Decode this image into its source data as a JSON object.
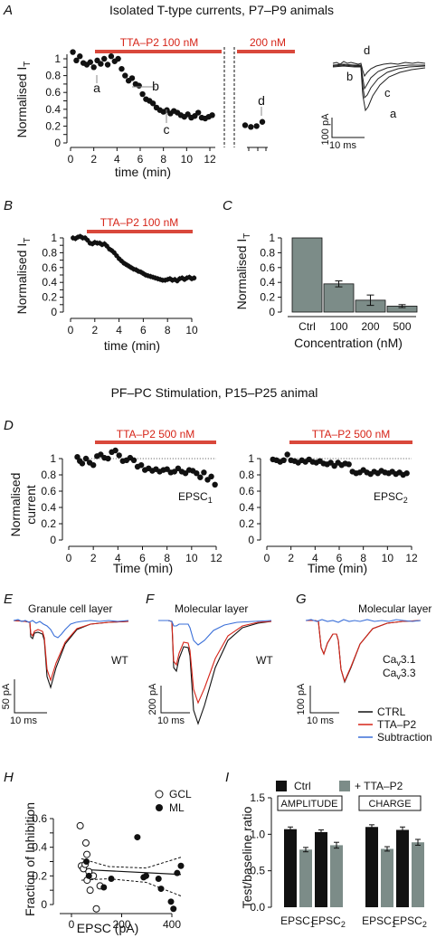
{
  "figure": {
    "section_title_top": "Isolated T-type currents, P7–P9 animals",
    "section_title_mid": "PF–PC Stimulation, P15–P25 animal"
  },
  "panels": {
    "A": {
      "letter": "A",
      "bar1_label": "TTA–P2 100 nM",
      "bar2_label": "200 nM",
      "trace_labels": [
        "a",
        "b",
        "c",
        "d"
      ],
      "scale": {
        "current": "100 pA",
        "time": "10 ms"
      }
    },
    "B": {
      "letter": "B",
      "bar_label": "TTA–P2 100 nM"
    },
    "C": {
      "letter": "C"
    },
    "D": {
      "letter": "D",
      "bar1_label": "TTA–P2 500 nM",
      "bar2_label": "TTA–P2 500 nM",
      "label1": "EPSC",
      "label1_sub": "1",
      "label2": "EPSC",
      "label2_sub": "2"
    },
    "E": {
      "letter": "E",
      "title": "Granule cell layer",
      "tag": "WT",
      "scale": {
        "current": "50 pA",
        "time": "10 ms"
      }
    },
    "F": {
      "letter": "F",
      "title": "Molecular layer",
      "tag": "WT",
      "scale": {
        "current": "200 pA",
        "time": "10 ms"
      }
    },
    "G": {
      "letter": "G",
      "title": "Molecular layer",
      "tag_line1": "Ca",
      "tag_line1_sub": "v",
      "tag_line1_rest": "3.1",
      "tag_line2": "Ca",
      "tag_line2_sub": "v",
      "tag_line2_rest": "3.3",
      "scale": {
        "current": "100 pA",
        "time": "10 ms"
      },
      "legend": [
        "CTRL",
        "TTA–P2",
        "Subtraction"
      ]
    },
    "H": {
      "letter": "H"
    },
    "I": {
      "letter": "I",
      "box1": "AMPLITUDE",
      "box2": "CHARGE",
      "legend": [
        "Ctrl",
        "+ TTA–P2"
      ]
    }
  },
  "colors": {
    "ctrl_trace": "#111111",
    "tta_trace": "#d62418",
    "subtraction_trace": "#3a6fd8",
    "drug_bar": "#d9483b",
    "gray_bar": "#7c8c88",
    "black_bar": "#111111"
  },
  "chart_data": [
    {
      "id": "A-time",
      "type": "scatter",
      "xlabel": "time (min)",
      "ylabel": "Normalised I",
      "ylabel_sub": "T",
      "xlim": [
        0,
        14.2
      ],
      "ylim": [
        0,
        1.1
      ],
      "x_ticks": [
        0,
        2,
        4,
        6,
        8,
        10,
        12
      ],
      "y_ticks": [
        0,
        0.1,
        0.2,
        0.3,
        0.4,
        0.5,
        0.6,
        0.7,
        0.8,
        0.9,
        1
      ],
      "series": [
        {
          "x": [
            0.2,
            0.5,
            0.8,
            1.1,
            1.4,
            1.7,
            2.0,
            2.3,
            2.6,
            2.9,
            3.2,
            3.5,
            3.8,
            4.1,
            4.4,
            4.7,
            5.0,
            5.3,
            5.6,
            5.9,
            6.2,
            6.5,
            6.8,
            7.1,
            7.4,
            7.7,
            8.0,
            8.3,
            8.6,
            8.9,
            9.2,
            9.5,
            9.8,
            10.1,
            10.4,
            10.7,
            11.0,
            11.3,
            11.6,
            11.9,
            12.2
          ],
          "y": [
            1.08,
            0.98,
            1.03,
            0.95,
            0.93,
            0.96,
            0.9,
            0.98,
            0.94,
            1.0,
            0.93,
            1.03,
            0.97,
            1.0,
            0.88,
            0.8,
            0.74,
            0.77,
            0.7,
            0.68,
            0.58,
            0.52,
            0.5,
            0.47,
            0.42,
            0.39,
            0.37,
            0.39,
            0.35,
            0.38,
            0.36,
            0.33,
            0.31,
            0.34,
            0.3,
            0.32,
            0.36,
            0.3,
            0.29,
            0.31,
            0.33
          ]
        },
        {
          "x": [
            13.2,
            13.5,
            13.8,
            14.1
          ],
          "y": [
            0.21,
            0.19,
            0.2,
            0.25
          ]
        }
      ],
      "point_labels": [
        {
          "text": "a",
          "x": 2.3,
          "y": 0.98
        },
        {
          "text": "b",
          "x": 5.0,
          "y": 0.74
        },
        {
          "text": "c",
          "x": 8.0,
          "y": 0.37
        },
        {
          "text": "d",
          "x": 13.8,
          "y": 0.2
        }
      ]
    },
    {
      "id": "B-time",
      "type": "scatter",
      "xlabel": "time (min)",
      "ylabel": "Normalised I",
      "ylabel_sub": "T",
      "xlim": [
        0,
        10.8
      ],
      "ylim": [
        0,
        1.05
      ],
      "x_ticks": [
        0,
        2,
        4,
        6,
        8,
        10
      ],
      "y_ticks": [
        0,
        0.1,
        0.2,
        0.3,
        0.4,
        0.5,
        0.6,
        0.7,
        0.8,
        0.9,
        1
      ],
      "series": [
        {
          "x": [
            0.2,
            0.4,
            0.6,
            0.8,
            1.0,
            1.2,
            1.4,
            1.6,
            1.8,
            2.0,
            2.2,
            2.4,
            2.6,
            2.8,
            3.0,
            3.2,
            3.4,
            3.6,
            3.8,
            4.0,
            4.2,
            4.4,
            4.6,
            4.8,
            5.0,
            5.2,
            5.4,
            5.6,
            5.8,
            6.0,
            6.2,
            6.4,
            6.6,
            6.8,
            7.0,
            7.2,
            7.4,
            7.6,
            7.8,
            8.0,
            8.2,
            8.4,
            8.6,
            8.8,
            9.0,
            9.2,
            9.4,
            9.6,
            9.8,
            10.0,
            10.2
          ],
          "y": [
            1.0,
            0.99,
            1.01,
            1.02,
            1.0,
            1.0,
            0.97,
            0.93,
            0.92,
            0.94,
            0.93,
            0.93,
            0.91,
            0.92,
            0.89,
            0.85,
            0.83,
            0.8,
            0.76,
            0.72,
            0.69,
            0.66,
            0.64,
            0.62,
            0.6,
            0.58,
            0.57,
            0.55,
            0.54,
            0.52,
            0.5,
            0.49,
            0.48,
            0.47,
            0.46,
            0.45,
            0.44,
            0.43,
            0.43,
            0.44,
            0.45,
            0.43,
            0.44,
            0.42,
            0.45,
            0.46,
            0.44,
            0.46,
            0.47,
            0.45,
            0.46
          ]
        }
      ]
    },
    {
      "id": "C-conc",
      "type": "bar",
      "categories": [
        "Ctrl",
        "100",
        "200",
        "500"
      ],
      "values": [
        1.0,
        0.38,
        0.16,
        0.08
      ],
      "errors": [
        0,
        0.04,
        0.07,
        0.02
      ],
      "xlabel": "Concentration (nM)",
      "ylabel": "Normalised I",
      "ylabel_sub": "T",
      "ylim": [
        0,
        1
      ],
      "y_ticks": [
        0,
        0.2,
        0.4,
        0.6,
        0.8,
        1
      ]
    },
    {
      "id": "D-epsc1",
      "type": "scatter",
      "xlabel": "Time (min)",
      "ylabel": "Normalised current",
      "xlim": [
        0,
        12
      ],
      "ylim": [
        0,
        1.1
      ],
      "x_ticks": [
        0,
        2,
        4,
        6,
        8,
        10,
        12
      ],
      "y_ticks": [
        0,
        0.2,
        0.4,
        0.6,
        0.8,
        1
      ],
      "series": [
        {
          "x": [
            0.7,
            0.9,
            1.1,
            1.4,
            1.7,
            2.0,
            2.3,
            2.6,
            2.9,
            3.2,
            3.5,
            3.8,
            4.1,
            4.4,
            4.7,
            5.0,
            5.3,
            5.6,
            5.9,
            6.2,
            6.5,
            6.8,
            7.1,
            7.4,
            7.7,
            8.0,
            8.3,
            8.6,
            8.9,
            9.2,
            9.5,
            9.8,
            10.1,
            10.4,
            10.7,
            11.0,
            11.3,
            11.6,
            11.9
          ],
          "y": [
            1.02,
            0.97,
            0.94,
            1.0,
            0.95,
            0.92,
            1.03,
            1.05,
            1.01,
            1.0,
            1.08,
            1.1,
            1.04,
            0.97,
            0.98,
            1.01,
            0.98,
            0.9,
            0.92,
            0.86,
            0.88,
            0.85,
            0.87,
            0.84,
            0.86,
            0.87,
            0.83,
            0.84,
            0.88,
            0.84,
            0.82,
            0.86,
            0.85,
            0.82,
            0.77,
            0.83,
            0.74,
            0.78,
            0.68
          ]
        }
      ],
      "dotted_reference": 1
    },
    {
      "id": "D-epsc2",
      "type": "scatter",
      "xlabel": "Time (min)",
      "ylabel": "",
      "xlim": [
        0,
        12
      ],
      "ylim": [
        0,
        1.1
      ],
      "x_ticks": [
        0,
        2,
        4,
        6,
        8,
        10,
        12
      ],
      "y_ticks": [
        0,
        0.2,
        0.4,
        0.6,
        0.8,
        1
      ],
      "series": [
        {
          "x": [
            0.5,
            0.8,
            1.1,
            1.4,
            1.7,
            2.0,
            2.3,
            2.6,
            2.9,
            3.2,
            3.5,
            3.8,
            4.1,
            4.4,
            4.7,
            5.0,
            5.3,
            5.6,
            5.9,
            6.2,
            6.5,
            6.8,
            7.1,
            7.4,
            7.7,
            8.0,
            8.3,
            8.6,
            8.9,
            9.2,
            9.5,
            9.8,
            10.1,
            10.4,
            10.7,
            11.0,
            11.3,
            11.6
          ],
          "y": [
            0.99,
            0.98,
            0.96,
            0.98,
            1.05,
            0.98,
            0.97,
            0.95,
            0.98,
            0.96,
            0.99,
            0.96,
            0.95,
            0.97,
            0.94,
            0.93,
            0.95,
            0.91,
            0.95,
            0.92,
            0.94,
            0.93,
            0.84,
            0.82,
            0.83,
            0.86,
            0.83,
            0.81,
            0.84,
            0.82,
            0.85,
            0.83,
            0.82,
            0.84,
            0.81,
            0.83,
            0.8,
            0.82
          ]
        }
      ],
      "dotted_reference": 1
    },
    {
      "id": "H-scatter",
      "type": "scatter",
      "xlabel": "EPSC (pA)",
      "ylabel": "Fraction of Inhibition",
      "xlim": [
        -20,
        450
      ],
      "ylim": [
        -0.08,
        0.62
      ],
      "x_ticks": [
        0,
        200,
        400
      ],
      "y_ticks": [
        0,
        0.1,
        0.2,
        0.3,
        0.4,
        0.5,
        0.6
      ],
      "series": [
        {
          "name": "GCL",
          "marker": "open",
          "x": [
            35,
            40,
            48,
            55,
            58,
            62,
            70,
            75,
            88,
            100,
            115,
            63
          ],
          "y": [
            0.55,
            0.27,
            0.25,
            0.28,
            0.43,
            0.35,
            0.23,
            0.1,
            0.2,
            -0.03,
            0.13,
            0.17
          ]
        },
        {
          "name": "ML",
          "marker": "filled",
          "x": [
            60,
            70,
            130,
            160,
            265,
            290,
            300,
            350,
            360,
            400,
            410,
            425,
            440
          ],
          "y": [
            0.3,
            0.2,
            0.12,
            0.18,
            0.47,
            0.19,
            0.2,
            0.18,
            0.11,
            0.02,
            -0.03,
            0.22,
            0.27
          ]
        }
      ],
      "fit": {
        "x0": 40,
        "y0": 0.245,
        "x1": 440,
        "y1": 0.21
      },
      "ci_upper": [
        [
          40,
          0.32
        ],
        [
          150,
          0.265
        ],
        [
          300,
          0.255
        ],
        [
          440,
          0.33
        ]
      ],
      "ci_lower": [
        [
          40,
          0.17
        ],
        [
          150,
          0.18
        ],
        [
          300,
          0.155
        ],
        [
          440,
          0.06
        ]
      ]
    },
    {
      "id": "I-ratio",
      "type": "bar",
      "categories": [
        "EPSC1",
        "EPSC2",
        "EPSC1",
        "EPSC2"
      ],
      "series": [
        {
          "name": "Ctrl",
          "values": [
            1.07,
            1.03,
            1.1,
            1.06
          ],
          "errors": [
            0.03,
            0.03,
            0.03,
            0.04
          ]
        },
        {
          "name": "+ TTA–P2",
          "values": [
            0.79,
            0.85,
            0.8,
            0.89
          ],
          "errors": [
            0.03,
            0.04,
            0.03,
            0.04
          ]
        }
      ],
      "ylabel": "Test/baseline ratio",
      "ylim": [
        0,
        1.5
      ],
      "y_ticks": [
        0,
        0.5,
        1.0,
        1.5
      ]
    }
  ]
}
